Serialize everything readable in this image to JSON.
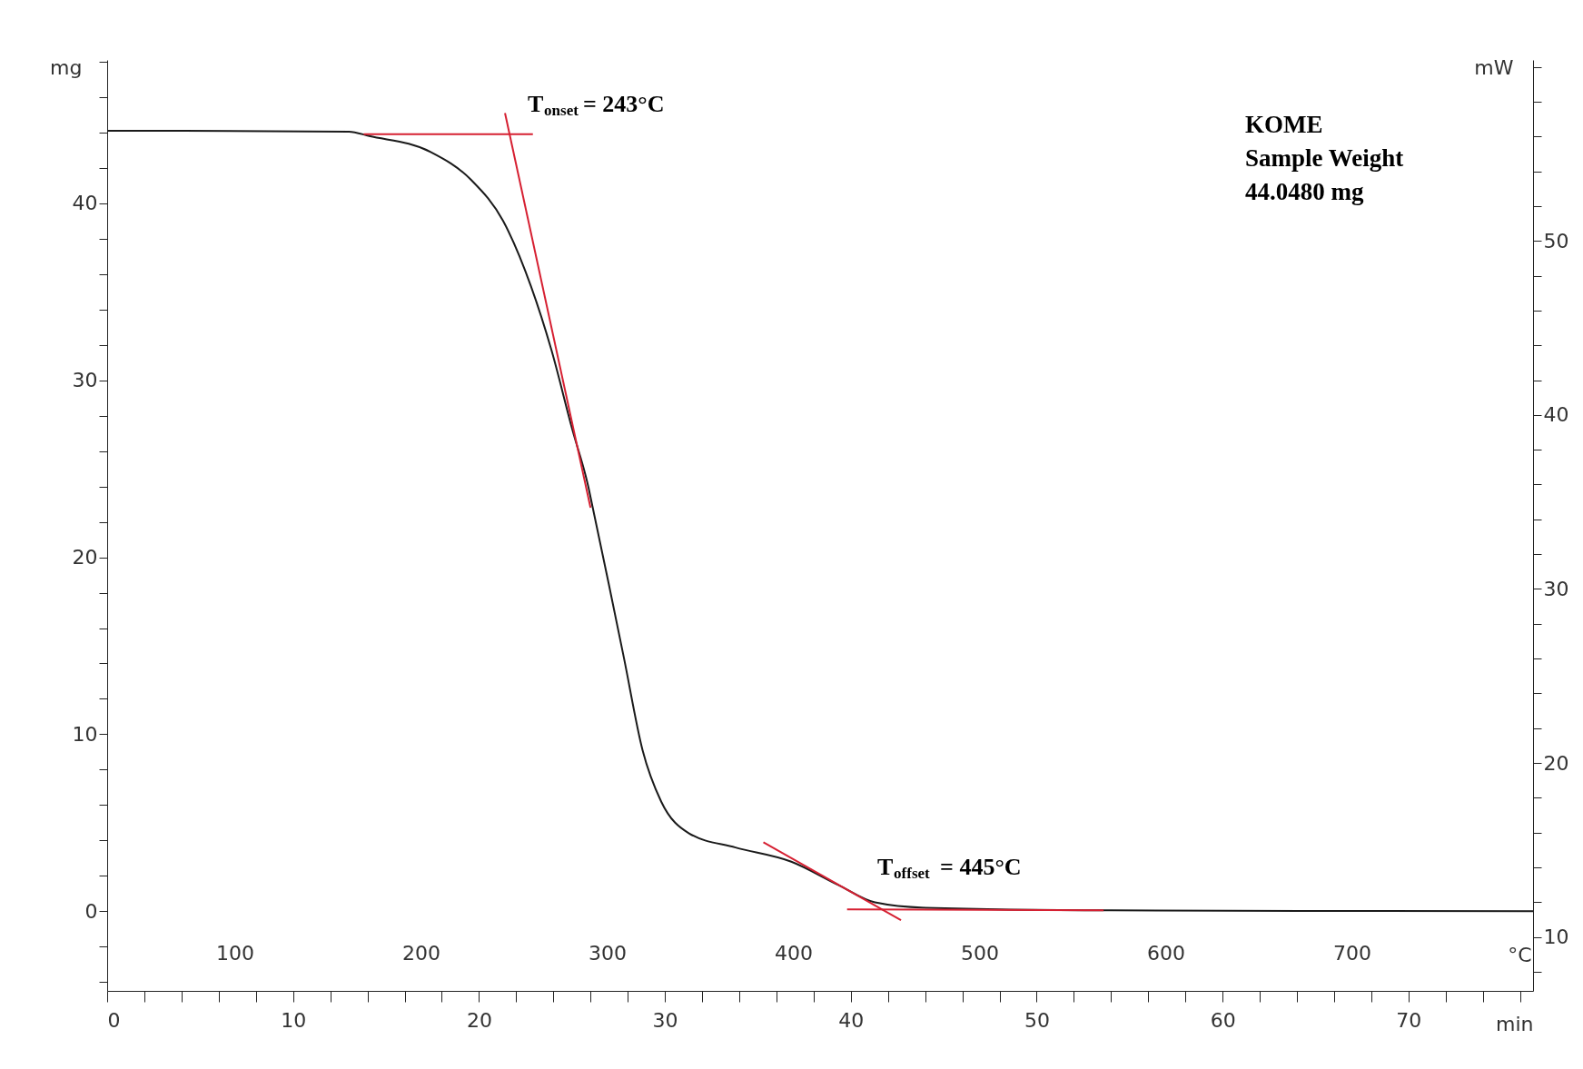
{
  "chart_data": {
    "type": "line",
    "xlabel": "min",
    "ylabel": "mg",
    "y2label": "mW",
    "x2label": "°C",
    "xlim": [
      0,
      76.7
    ],
    "ylim": [
      -4.5,
      48.1
    ],
    "y2lim": [
      6.9,
      60.4
    ],
    "x2lim": [
      31.4,
      797.3
    ],
    "xticks": [
      0,
      {
        "value": 2,
        "label": null
      },
      {
        "value": 4,
        "label": null
      },
      {
        "value": 6,
        "label": null
      },
      {
        "value": 8,
        "label": null
      },
      10,
      {
        "value": 12,
        "label": null
      },
      {
        "value": 14,
        "label": null
      },
      {
        "value": 16,
        "label": null
      },
      {
        "value": 18,
        "label": null
      },
      20,
      {
        "value": 22,
        "label": null
      },
      {
        "value": 24,
        "label": null
      },
      {
        "value": 26,
        "label": null
      },
      {
        "value": 28,
        "label": null
      },
      30,
      {
        "value": 32,
        "label": null
      },
      {
        "value": 34,
        "label": null
      },
      {
        "value": 36,
        "label": null
      },
      {
        "value": 38,
        "label": null
      },
      40,
      {
        "value": 42,
        "label": null
      },
      {
        "value": 44,
        "label": null
      },
      {
        "value": 46,
        "label": null
      },
      {
        "value": 48,
        "label": null
      },
      50,
      {
        "value": 52,
        "label": null
      },
      {
        "value": 54,
        "label": null
      },
      {
        "value": 56,
        "label": null
      },
      {
        "value": 58,
        "label": null
      },
      60,
      {
        "value": 62,
        "label": null
      },
      {
        "value": 64,
        "label": null
      },
      {
        "value": 66,
        "label": null
      },
      {
        "value": 68,
        "label": null
      },
      70,
      {
        "value": 72,
        "label": null
      },
      {
        "value": 74,
        "label": null
      },
      {
        "value": 76,
        "label": null
      }
    ],
    "yticks": [
      {
        "value": -4,
        "label": null
      },
      {
        "value": -2,
        "label": null
      },
      0,
      {
        "value": 2,
        "label": null
      },
      {
        "value": 4,
        "label": null
      },
      {
        "value": 6,
        "label": null
      },
      {
        "value": 8,
        "label": null
      },
      10,
      {
        "value": 12,
        "label": null
      },
      {
        "value": 14,
        "label": null
      },
      {
        "value": 16,
        "label": null
      },
      {
        "value": 18,
        "label": null
      },
      20,
      {
        "value": 22,
        "label": null
      },
      {
        "value": 24,
        "label": null
      },
      {
        "value": 26,
        "label": null
      },
      {
        "value": 28,
        "label": null
      },
      30,
      {
        "value": 32,
        "label": null
      },
      {
        "value": 34,
        "label": null
      },
      {
        "value": 36,
        "label": null
      },
      {
        "value": 38,
        "label": null
      },
      40,
      {
        "value": 42,
        "label": null
      },
      {
        "value": 44,
        "label": null
      },
      {
        "value": 46,
        "label": null
      },
      {
        "value": 48,
        "label": null
      }
    ],
    "y2ticks": [
      {
        "value": 8,
        "label": null
      },
      10,
      {
        "value": 12,
        "label": null
      },
      {
        "value": 14,
        "label": null
      },
      {
        "value": 16,
        "label": null
      },
      {
        "value": 18,
        "label": null
      },
      20,
      {
        "value": 22,
        "label": null
      },
      {
        "value": 24,
        "label": null
      },
      {
        "value": 26,
        "label": null
      },
      {
        "value": 28,
        "label": null
      },
      30,
      {
        "value": 32,
        "label": null
      },
      {
        "value": 34,
        "label": null
      },
      {
        "value": 36,
        "label": null
      },
      {
        "value": 38,
        "label": null
      },
      40,
      {
        "value": 42,
        "label": null
      },
      {
        "value": 44,
        "label": null
      },
      {
        "value": 46,
        "label": null
      },
      {
        "value": 48,
        "label": null
      },
      50,
      {
        "value": 52,
        "label": null
      },
      {
        "value": 54,
        "label": null
      },
      {
        "value": 56,
        "label": null
      },
      {
        "value": 58,
        "label": null
      },
      {
        "value": 60,
        "label": null
      }
    ],
    "x2ticks": [
      100,
      200,
      300,
      400,
      500,
      600,
      700
    ],
    "grid": false,
    "series": [
      {
        "color": "#1a1a1a",
        "x": [
          0,
          13,
          14.1,
          17.4,
          19.6,
          21.3,
          22.8,
          23.9,
          25.0,
          25.9,
          26.1,
          27.0,
          27.8,
          28.8,
          29.8,
          31.3,
          33.8,
          36.8,
          39.3,
          41.3,
          44,
          54,
          76.7
        ],
        "values": [
          44.1,
          44.05,
          43.8,
          42.9,
          41.3,
          39.0,
          35.3,
          31.7,
          27.3,
          23.9,
          22.9,
          18.4,
          14.3,
          9.1,
          6.2,
          4.4,
          3.6,
          2.8,
          1.5,
          0.5,
          0.2,
          0.05,
          0
        ]
      },
      {
        "color": "#d62032",
        "x": [
          13.8,
          22.9
        ],
        "values": [
          43.9,
          43.9
        ]
      },
      {
        "color": "#d62032",
        "x": [
          21.4,
          26.0
        ],
        "values": [
          45.1,
          22.8
        ]
      },
      {
        "color": "#d62032",
        "x": [
          35.3,
          42.7
        ],
        "values": [
          3.9,
          -0.5
        ]
      },
      {
        "color": "#d62032",
        "x": [
          39.8,
          53.6
        ],
        "values": [
          0.1,
          0.06
        ]
      }
    ],
    "annotations": [
      "T$_{onset}$ = 243°C",
      "T$_{offset}$ = 445°C",
      "KOME",
      "Sample Weight",
      "44.0480 mg"
    ]
  }
}
